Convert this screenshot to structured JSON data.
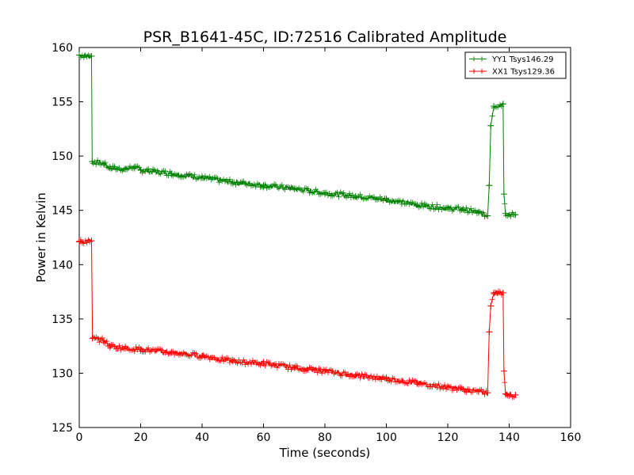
{
  "chart_data": {
    "type": "line",
    "title": "PSR_B1641-45C, ID:72516 Calibrated Amplitude",
    "xlabel": "Time (seconds)",
    "ylabel": "Power in Kelvin",
    "xlim": [
      0,
      160
    ],
    "ylim": [
      125,
      160
    ],
    "xticks": [
      "0",
      "20",
      "40",
      "60",
      "80",
      "100",
      "120",
      "140",
      "160"
    ],
    "yticks": [
      "125",
      "130",
      "135",
      "140",
      "145",
      "150",
      "155",
      "160"
    ],
    "grid": false,
    "legend_position": "top-right",
    "marker": "+",
    "series": [
      {
        "name": "YY1 Tsys146.29",
        "color": "#008000",
        "points": [
          [
            0,
            159.3
          ],
          [
            4,
            159.2
          ],
          [
            4.2,
            149.5
          ],
          [
            8,
            149.3
          ],
          [
            10,
            148.9
          ],
          [
            15,
            148.8
          ],
          [
            18,
            149.0
          ],
          [
            20,
            148.7
          ],
          [
            30,
            148.4
          ],
          [
            40,
            148.0
          ],
          [
            50,
            147.6
          ],
          [
            60,
            147.3
          ],
          [
            70,
            147.0
          ],
          [
            80,
            146.6
          ],
          [
            90,
            146.3
          ],
          [
            100,
            146.0
          ],
          [
            110,
            145.5
          ],
          [
            120,
            145.2
          ],
          [
            125,
            145.1
          ],
          [
            130,
            144.8
          ],
          [
            133,
            144.5
          ],
          [
            133.5,
            147.3
          ],
          [
            134,
            152.8
          ],
          [
            135,
            154.6
          ],
          [
            138,
            154.8
          ],
          [
            138.3,
            146.5
          ],
          [
            138.8,
            144.7
          ],
          [
            142,
            144.6
          ]
        ]
      },
      {
        "name": "XX1 Tsys129.36",
        "color": "#ff0000",
        "points": [
          [
            0,
            142.1
          ],
          [
            4,
            142.2
          ],
          [
            4.3,
            133.2
          ],
          [
            8,
            133.0
          ],
          [
            10,
            132.5
          ],
          [
            15,
            132.3
          ],
          [
            20,
            132.2
          ],
          [
            30,
            131.9
          ],
          [
            40,
            131.6
          ],
          [
            50,
            131.1
          ],
          [
            60,
            130.9
          ],
          [
            70,
            130.5
          ],
          [
            80,
            130.2
          ],
          [
            90,
            129.8
          ],
          [
            100,
            129.5
          ],
          [
            110,
            129.1
          ],
          [
            120,
            128.7
          ],
          [
            130,
            128.3
          ],
          [
            133,
            128.2
          ],
          [
            133.5,
            133.8
          ],
          [
            134,
            136.2
          ],
          [
            135,
            137.4
          ],
          [
            138,
            137.4
          ],
          [
            138.3,
            130.2
          ],
          [
            138.8,
            128.1
          ],
          [
            142,
            128.0
          ]
        ]
      }
    ]
  }
}
